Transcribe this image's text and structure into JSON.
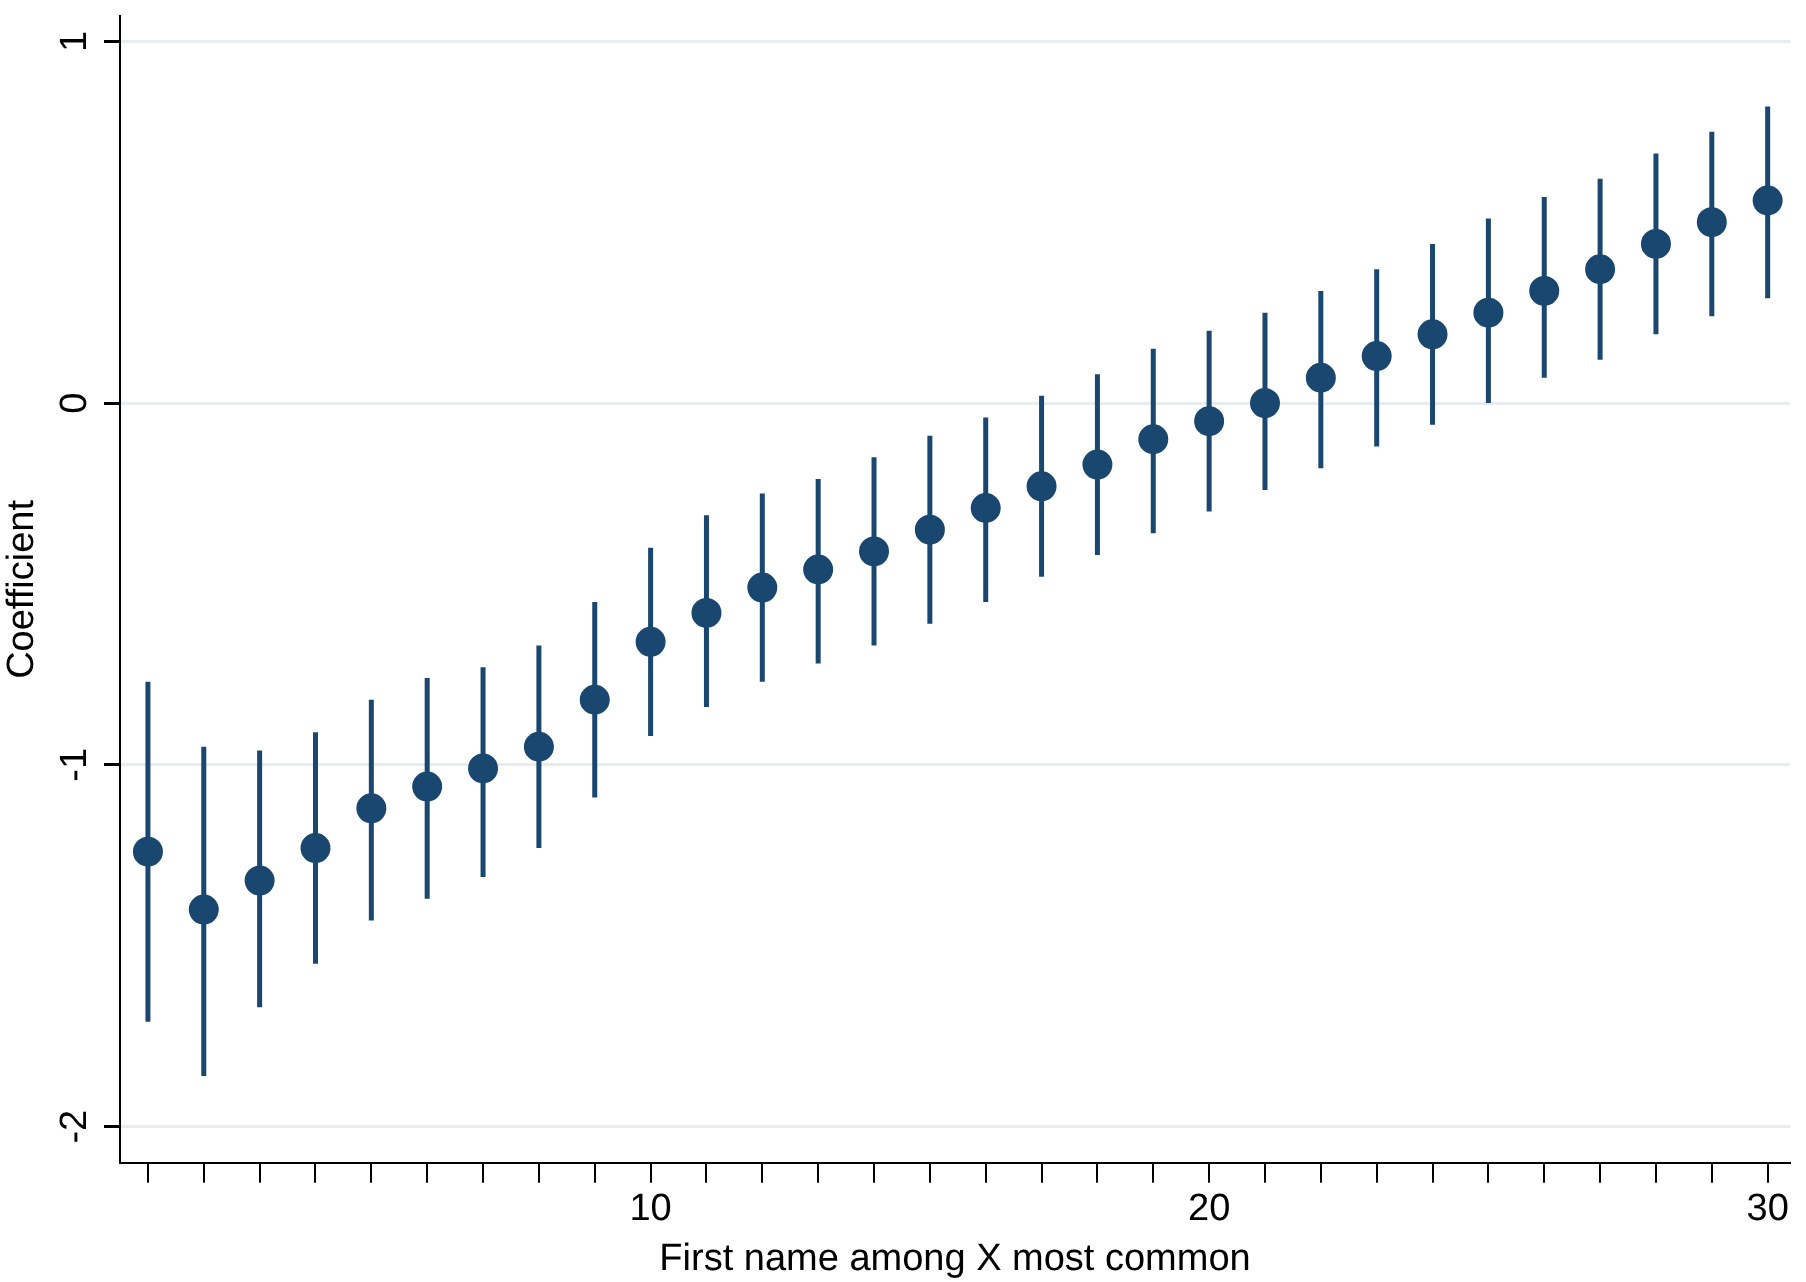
{
  "chart_data": {
    "type": "scatter",
    "xlabel": "First name among X most common",
    "ylabel": "Coefficient",
    "marker": "circle",
    "grid": "y",
    "legend": false,
    "x": [
      1,
      2,
      3,
      4,
      5,
      6,
      7,
      8,
      9,
      10,
      11,
      12,
      13,
      14,
      15,
      16,
      17,
      18,
      19,
      20,
      21,
      22,
      23,
      24,
      25,
      26,
      27,
      28,
      29,
      30
    ],
    "series": [
      {
        "color": "#1a476f",
        "values": [
          -1.24,
          -1.4,
          -1.32,
          -1.23,
          -1.12,
          -1.06,
          -1.01,
          -0.95,
          -0.82,
          -0.66,
          -0.58,
          -0.51,
          -0.46,
          -0.41,
          -0.35,
          -0.29,
          -0.23,
          -0.17,
          -0.1,
          -0.05,
          0.0,
          0.07,
          0.13,
          0.19,
          0.25,
          0.31,
          0.37,
          0.44,
          0.5,
          0.56
        ],
        "errors": [
          [
            -1.71,
            -0.77
          ],
          [
            -1.86,
            -0.95
          ],
          [
            -1.67,
            -0.96
          ],
          [
            -1.55,
            -0.91
          ],
          [
            -1.43,
            -0.82
          ],
          [
            -1.37,
            -0.76
          ],
          [
            -1.31,
            -0.73
          ],
          [
            -1.23,
            -0.67
          ],
          [
            -1.09,
            -0.55
          ],
          [
            -0.92,
            -0.4
          ],
          [
            -0.84,
            -0.31
          ],
          [
            -0.77,
            -0.25
          ],
          [
            -0.72,
            -0.21
          ],
          [
            -0.67,
            -0.15
          ],
          [
            -0.61,
            -0.09
          ],
          [
            -0.55,
            -0.04
          ],
          [
            -0.48,
            0.02
          ],
          [
            -0.42,
            0.08
          ],
          [
            -0.36,
            0.15
          ],
          [
            -0.3,
            0.2
          ],
          [
            -0.24,
            0.25
          ],
          [
            -0.18,
            0.31
          ],
          [
            -0.12,
            0.37
          ],
          [
            -0.06,
            0.44
          ],
          [
            0.0,
            0.51
          ],
          [
            0.07,
            0.57
          ],
          [
            0.12,
            0.62
          ],
          [
            0.19,
            0.69
          ],
          [
            0.24,
            0.75
          ],
          [
            0.29,
            0.82
          ]
        ]
      }
    ],
    "xlim": [
      0.5,
      30.4
    ],
    "xticks": [
      {
        "value": 1,
        "label": null
      },
      {
        "value": 2,
        "label": null
      },
      {
        "value": 3,
        "label": null
      },
      {
        "value": 4,
        "label": null
      },
      {
        "value": 5,
        "label": null
      },
      {
        "value": 6,
        "label": null
      },
      {
        "value": 7,
        "label": null
      },
      {
        "value": 8,
        "label": null
      },
      {
        "value": 9,
        "label": null
      },
      10,
      {
        "value": 11,
        "label": null
      },
      {
        "value": 12,
        "label": null
      },
      {
        "value": 13,
        "label": null
      },
      {
        "value": 14,
        "label": null
      },
      {
        "value": 15,
        "label": null
      },
      {
        "value": 16,
        "label": null
      },
      {
        "value": 17,
        "label": null
      },
      {
        "value": 18,
        "label": null
      },
      {
        "value": 19,
        "label": null
      },
      20,
      {
        "value": 21,
        "label": null
      },
      {
        "value": 22,
        "label": null
      },
      {
        "value": 23,
        "label": null
      },
      {
        "value": 24,
        "label": null
      },
      {
        "value": 25,
        "label": null
      },
      {
        "value": 26,
        "label": null
      },
      {
        "value": 27,
        "label": null
      },
      {
        "value": 28,
        "label": null
      },
      {
        "value": 29,
        "label": null
      },
      30
    ],
    "ylim": [
      -2.1,
      1.07
    ],
    "yticks": [
      -2,
      -1,
      0,
      1
    ]
  }
}
